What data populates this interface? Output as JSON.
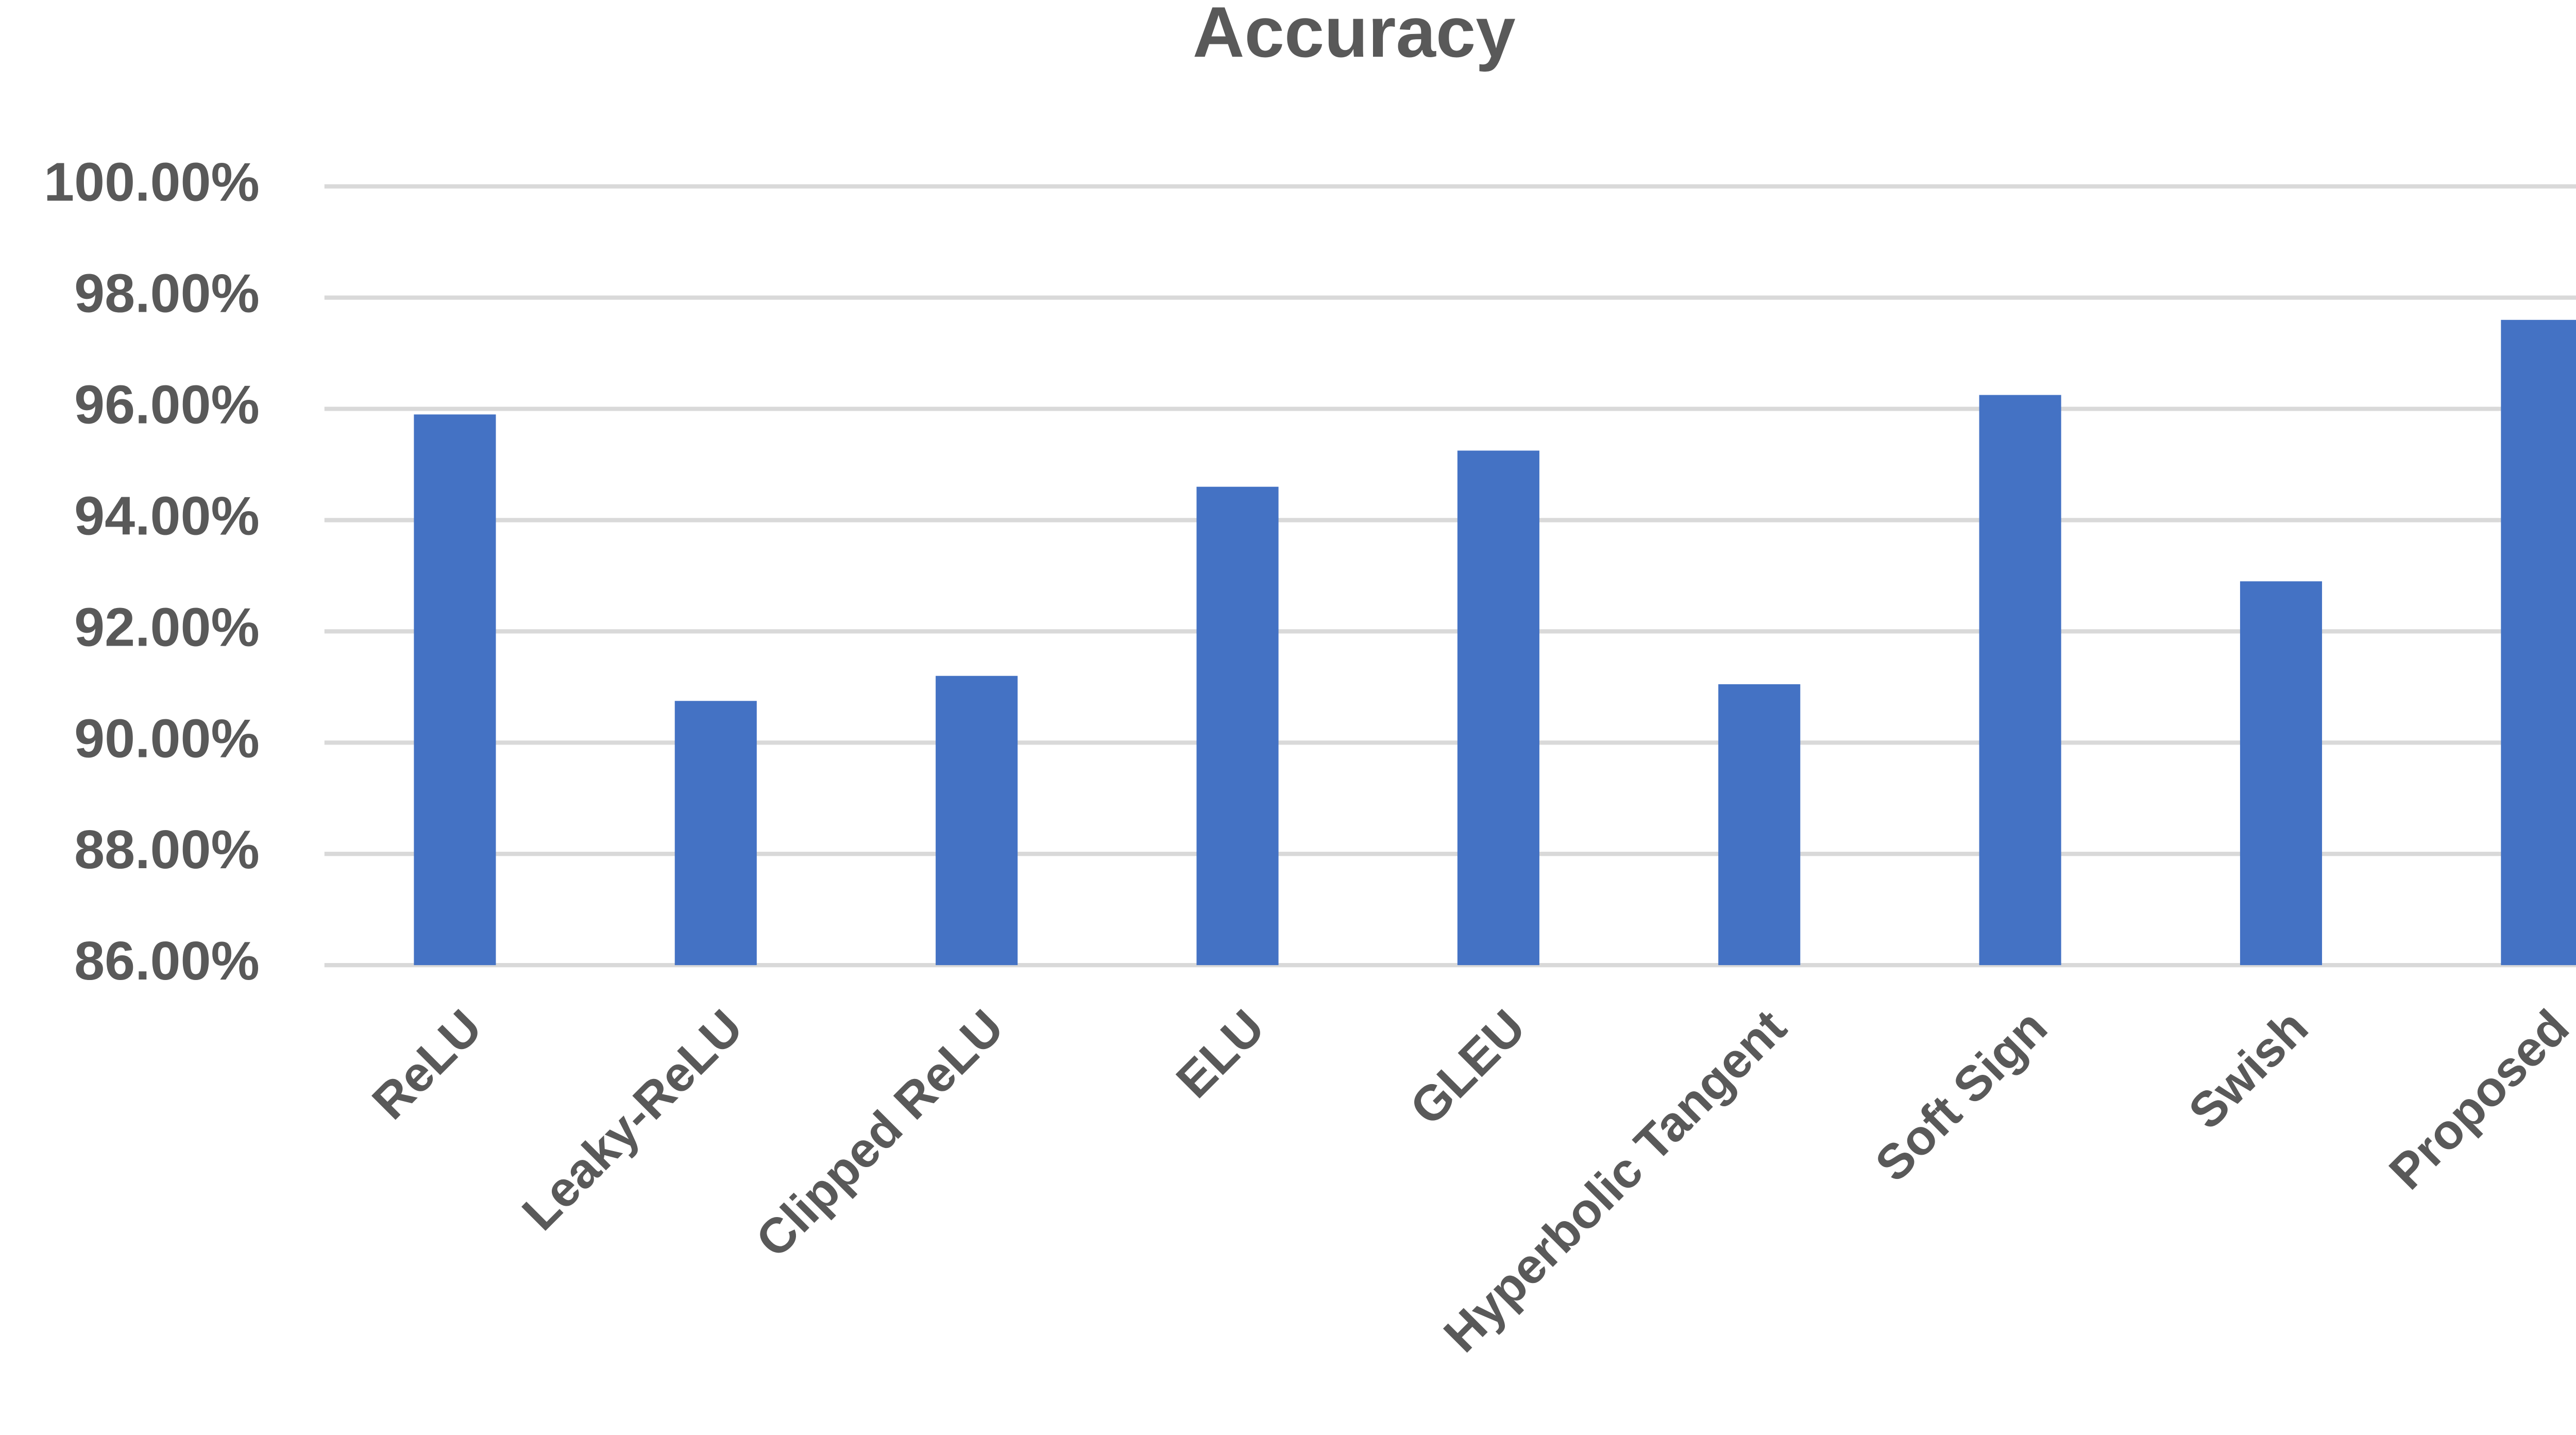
{
  "chart_data": {
    "type": "bar",
    "title": "Accuracy",
    "categories": [
      "ReLU",
      "Leaky-ReLU",
      "Clipped ReLU",
      "ELU",
      "GLEU",
      "Hyperbolic Tangent",
      "Soft Sign",
      "Swish",
      "Proposed"
    ],
    "values": [
      95.9,
      90.75,
      91.2,
      94.6,
      95.25,
      91.05,
      96.25,
      92.9,
      97.6
    ],
    "color": "#4472c4",
    "ylim": [
      86,
      100
    ],
    "yticks": [
      {
        "value": 86,
        "label": "86.00%"
      },
      {
        "value": 88,
        "label": "88.00%"
      },
      {
        "value": 90,
        "label": "90.00%"
      },
      {
        "value": 92,
        "label": "92.00%"
      },
      {
        "value": 94,
        "label": "94.00%"
      },
      {
        "value": 96,
        "label": "96.00%"
      },
      {
        "value": 98,
        "label": "98.00%"
      },
      {
        "value": 100,
        "label": "100.00%"
      }
    ],
    "grid": true
  }
}
